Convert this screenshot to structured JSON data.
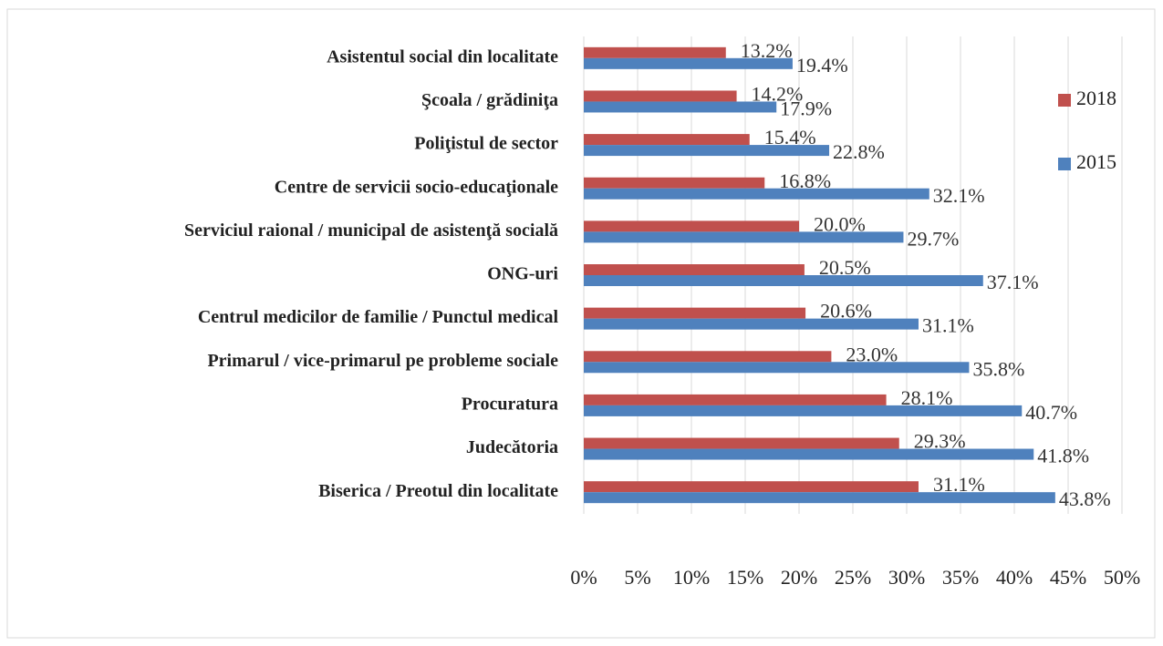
{
  "chart_data": {
    "type": "bar",
    "orientation": "horizontal",
    "categories": [
      "Asistentul social din localitate",
      "Şcoala / grădiniţa",
      "Poliţistul de sector",
      "Centre de servicii socio-educaţionale",
      "Serviciul raional / municipal de asistenţă socială",
      "ONG-uri",
      "Centrul medicilor de familie / Punctul medical",
      "Primarul / vice-primarul pe probleme sociale",
      "Procuratura",
      "Judecătoria",
      "Biserica / Preotul din localitate"
    ],
    "series": [
      {
        "name": "2018",
        "color": "#c0504d",
        "values": [
          13.2,
          14.2,
          15.4,
          16.8,
          20.0,
          20.5,
          20.6,
          23.0,
          28.1,
          29.3,
          31.1
        ],
        "value_labels": [
          "13.2%",
          "14.2%",
          "15.4%",
          "16.8%",
          "20.0%",
          "20.5%",
          "20.6%",
          "23.0%",
          "28.1%",
          "29.3%",
          "31.1%"
        ]
      },
      {
        "name": "2015",
        "color": "#4f81bd",
        "values": [
          19.4,
          17.9,
          22.8,
          32.1,
          29.7,
          37.1,
          31.1,
          35.8,
          40.7,
          41.8,
          43.8
        ],
        "value_labels": [
          "19.4%",
          "17.9%",
          "22.8%",
          "32.1%",
          "29.7%",
          "37.1%",
          "31.1%",
          "35.8%",
          "40.7%",
          "41.8%",
          "43.8%"
        ]
      }
    ],
    "xlim": [
      0,
      50
    ],
    "xticks": [
      {
        "value": 0,
        "label": "0%"
      },
      {
        "value": 5,
        "label": "5%"
      },
      {
        "value": 10,
        "label": "10%"
      },
      {
        "value": 15,
        "label": "15%"
      },
      {
        "value": 20,
        "label": "20%"
      },
      {
        "value": 25,
        "label": "25%"
      },
      {
        "value": 30,
        "label": "30%"
      },
      {
        "value": 35,
        "label": "35%"
      },
      {
        "value": 40,
        "label": "40%"
      },
      {
        "value": 45,
        "label": "45%"
      },
      {
        "value": 50,
        "label": "50%"
      }
    ],
    "grid": true,
    "legend": "right"
  }
}
